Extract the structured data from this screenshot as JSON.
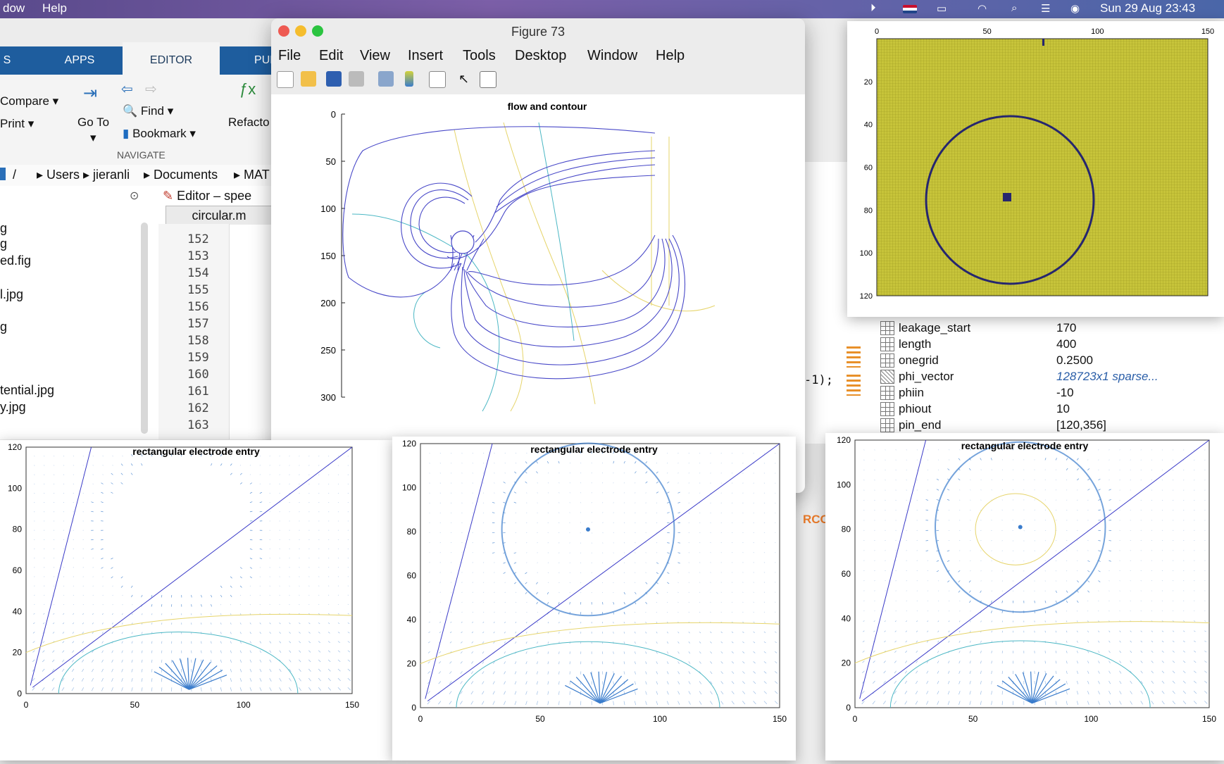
{
  "menubar": {
    "items": [
      "dow",
      "Help"
    ],
    "clock": "Sun 29 Aug  23:43"
  },
  "matlab": {
    "tabs": [
      "S",
      "APPS",
      "EDITOR",
      "PUE"
    ],
    "ribbon": {
      "compare": "Compare",
      "print": "Print",
      "goto": "Go To",
      "find": "Find",
      "bookmark": "Bookmark",
      "refactor": "Refacto",
      "navigate": "NAVIGATE"
    },
    "path": [
      "/",
      "Users",
      "jieranli",
      "Documents",
      "MAT"
    ],
    "files": [
      "g",
      "g",
      "ed.fig",
      "l.jpg",
      "g",
      "tential.jpg",
      "y.jpg"
    ],
    "editor": {
      "title": "Editor – spee",
      "file_tab": "circular.m",
      "lines": [
        "152",
        "153",
        "154",
        "155",
        "156",
        "157",
        "158",
        "159",
        "160",
        "161",
        "162",
        "163"
      ]
    },
    "code_fragment": "-1);",
    "rco": "RCO",
    "workspace": [
      {
        "name": "leakage_start",
        "value": "170"
      },
      {
        "name": "length",
        "value": "400"
      },
      {
        "name": "onegrid",
        "value": "0.2500"
      },
      {
        "name": "phi_vector",
        "value": "128723x1 sparse..."
      },
      {
        "name": "phiin",
        "value": "-10"
      },
      {
        "name": "phiout",
        "value": "10"
      },
      {
        "name": "pin_end",
        "value": "[120,356]"
      }
    ]
  },
  "figure": {
    "title": "Figure 73",
    "menus": [
      "File",
      "Edit",
      "View",
      "Insert",
      "Tools",
      "Desktop",
      "Window",
      "Help"
    ],
    "plot_title": "flow and contour",
    "colors": {
      "flow": "#4848c8",
      "contour_teal": "#4bb7c4",
      "contour_yellow": "#e6d46a"
    }
  },
  "image_plot": {
    "colors": {
      "field": "#c7c43a",
      "boundary": "#26266e"
    }
  },
  "bottom_title": "rectangular electrode entry",
  "quiver_color": "#3a7ccc",
  "chart_data": [
    {
      "type": "line",
      "title": "flow and contour",
      "ylim": [
        0,
        300
      ],
      "yticks": [
        0,
        50,
        100,
        150,
        200,
        250,
        300
      ]
    },
    {
      "type": "heatmap",
      "xlim": [
        0,
        150
      ],
      "ylim": [
        0,
        120
      ],
      "xticks": [
        0,
        50,
        100,
        150
      ],
      "yticks": [
        20,
        40,
        60,
        80,
        100,
        120
      ]
    },
    {
      "type": "line",
      "title": "rectangular electrode entry",
      "xlim": [
        0,
        150
      ],
      "ylim": [
        0,
        120
      ],
      "xticks": [
        0,
        50,
        100,
        150
      ],
      "yticks": [
        0,
        20,
        40,
        60,
        80,
        100,
        120
      ]
    },
    {
      "type": "line",
      "title": "rectangular electrode entry",
      "xlim": [
        0,
        150
      ],
      "ylim": [
        0,
        120
      ],
      "xticks": [
        0,
        50,
        100,
        150
      ],
      "yticks": [
        0,
        20,
        40,
        60,
        80,
        100,
        120
      ]
    },
    {
      "type": "line",
      "title": "rectangular electrode entry",
      "xlim": [
        0,
        150
      ],
      "ylim": [
        0,
        120
      ],
      "xticks": [
        0,
        50,
        100,
        150
      ],
      "yticks": [
        0,
        20,
        40,
        60,
        80,
        100,
        120
      ]
    }
  ]
}
